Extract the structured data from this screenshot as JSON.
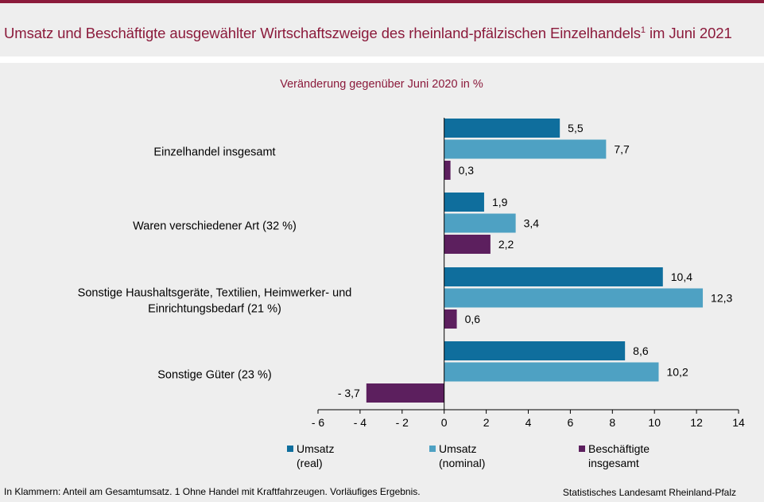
{
  "header": {
    "title": "Umsatz und Beschäftigte ausgewählter Wirtschaftszweige des rheinland-pfälzischen Einzelhandels",
    "title_sup": "1",
    "title_suffix": " im Juni 2021"
  },
  "footer": {
    "note": "In Klammern: Anteil am Gesamtumsatz. 1 Ohne Handel mit Kraftfahrzeugen. Vorläufiges Ergebnis.",
    "source": "Statistisches Landesamt Rheinland-Pfalz"
  },
  "chart_data": {
    "type": "bar",
    "orientation": "horizontal",
    "subtitle": "Veränderung gegenüber Juni 2020 in %",
    "categories": [
      [
        "Einzelhandel insgesamt"
      ],
      [
        "Waren verschiedener Art (32 %)"
      ],
      [
        "Sonstige Haushaltsgeräte, Textilien, Heimwerker- und",
        "Einrichtungsbedarf (21 %)"
      ],
      [
        "Sonstige Güter (23 %)"
      ]
    ],
    "series": [
      {
        "name": "Umsatz (real)",
        "legend_lines": [
          "Umsatz",
          "(real)"
        ],
        "color": "#0f6e9d",
        "values": [
          5.5,
          1.9,
          10.4,
          8.6
        ]
      },
      {
        "name": "Umsatz (nominal)",
        "legend_lines": [
          "Umsatz",
          "(nominal)"
        ],
        "color": "#4ea1c3",
        "values": [
          7.7,
          3.4,
          12.3,
          10.2
        ]
      },
      {
        "name": "Beschäftigte insgesamt",
        "legend_lines": [
          "Beschäftigte",
          "insgesamt"
        ],
        "color": "#5c1f5e",
        "values": [
          0.3,
          2.2,
          0.6,
          -3.7
        ]
      }
    ],
    "xlim": [
      -6,
      14
    ],
    "ticks": [
      -6,
      -4,
      -2,
      0,
      2,
      4,
      6,
      8,
      10,
      12,
      14
    ],
    "tick_labels": [
      "- 6",
      "- 4",
      "- 2",
      "0",
      "2",
      "4",
      "6",
      "8",
      "10",
      "12",
      "14"
    ],
    "data_labels": [
      [
        "5,5",
        "1,9",
        "10,4",
        "8,6"
      ],
      [
        "7,7",
        "3,4",
        "12,3",
        "10,2"
      ],
      [
        "0,3",
        "2,2",
        "0,6",
        "- 3,7"
      ]
    ],
    "legend_position": "bottom",
    "grid": false
  }
}
